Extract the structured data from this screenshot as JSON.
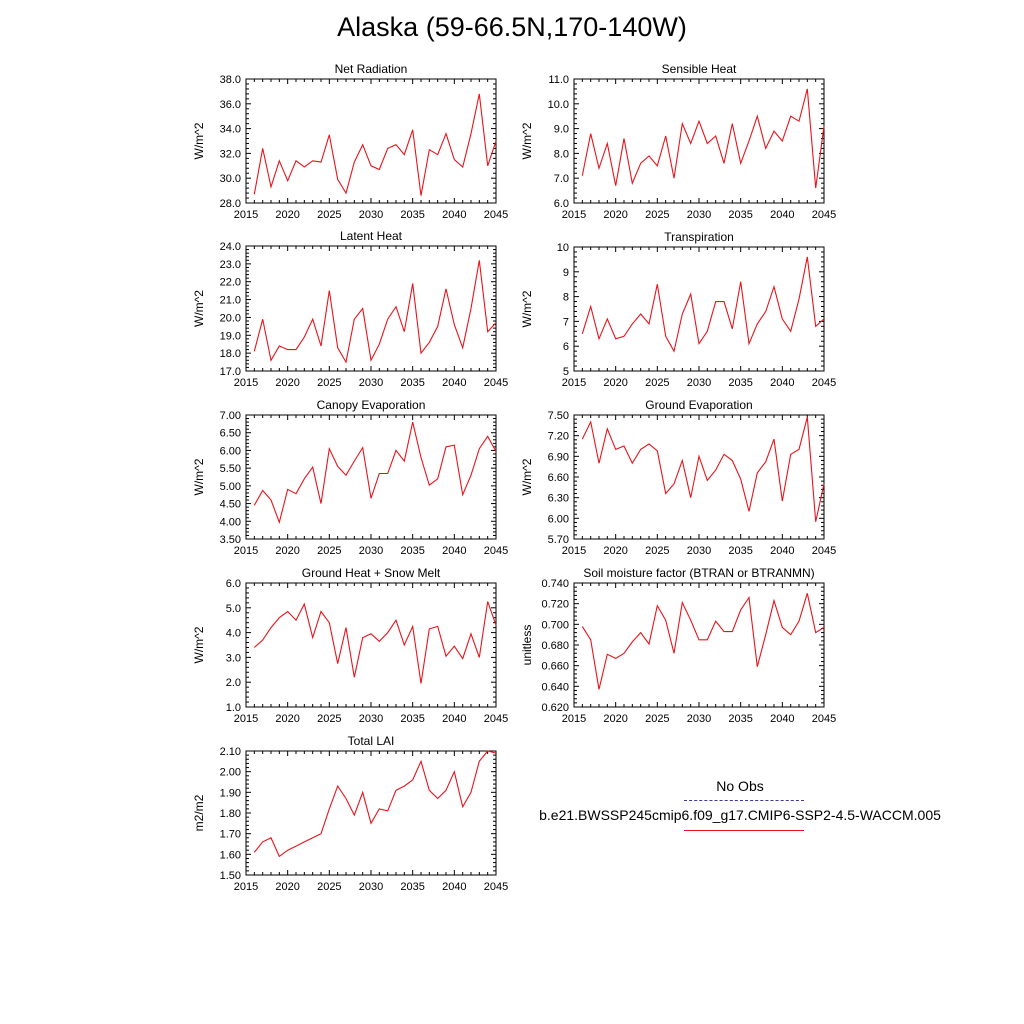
{
  "title": "Alaska (59-66.5N,170-140W)",
  "line_color": "#e8141b",
  "obs_color": "#3a3aa0",
  "legend": {
    "obs_label": "No Obs",
    "model_label": "b.e21.BWSSP245cmip6.f09_g17.CMIP6-SSP2-4.5-WACCM.005"
  },
  "chart_data": [
    {
      "type": "line",
      "title": "Net Radiation",
      "ylabel": "W/m^2",
      "xlim": [
        2015,
        2045
      ],
      "ylim": [
        28.0,
        38.0
      ],
      "xticks": [
        2015,
        2020,
        2025,
        2030,
        2035,
        2040,
        2045
      ],
      "yticks": [
        "28.0",
        "30.0",
        "32.0",
        "34.0",
        "36.0",
        "38.0"
      ],
      "x": [
        2016,
        2017,
        2018,
        2019,
        2020,
        2021,
        2022,
        2023,
        2024,
        2025,
        2026,
        2027,
        2028,
        2029,
        2030,
        2031,
        2032,
        2033,
        2034,
        2035,
        2036,
        2037,
        2038,
        2039,
        2040,
        2041,
        2042,
        2043,
        2044,
        2045
      ],
      "values": [
        28.7,
        32.4,
        29.3,
        31.4,
        29.8,
        31.4,
        30.9,
        31.4,
        31.3,
        33.5,
        29.9,
        28.8,
        31.3,
        32.7,
        31.0,
        30.7,
        32.4,
        32.7,
        31.9,
        33.9,
        28.6,
        32.3,
        31.9,
        33.6,
        31.5,
        30.9,
        33.6,
        36.8,
        31.0,
        33.0
      ]
    },
    {
      "type": "line",
      "title": "Sensible Heat",
      "ylabel": "W/m^2",
      "xlim": [
        2015,
        2045
      ],
      "ylim": [
        6.0,
        11.0
      ],
      "xticks": [
        2015,
        2020,
        2025,
        2030,
        2035,
        2040,
        2045
      ],
      "yticks": [
        "6.0",
        "7.0",
        "8.0",
        "9.0",
        "10.0",
        "11.0"
      ],
      "x": [
        2016,
        2017,
        2018,
        2019,
        2020,
        2021,
        2022,
        2023,
        2024,
        2025,
        2026,
        2027,
        2028,
        2029,
        2030,
        2031,
        2032,
        2033,
        2034,
        2035,
        2036,
        2037,
        2038,
        2039,
        2040,
        2041,
        2042,
        2043,
        2044,
        2045
      ],
      "values": [
        7.1,
        8.8,
        7.4,
        8.4,
        6.7,
        8.6,
        6.8,
        7.6,
        7.9,
        7.5,
        8.7,
        7.0,
        9.2,
        8.4,
        9.3,
        8.4,
        8.7,
        7.6,
        9.2,
        7.6,
        8.5,
        9.5,
        8.2,
        8.9,
        8.5,
        9.5,
        9.3,
        10.6,
        6.6,
        9.1
      ]
    },
    {
      "type": "line",
      "title": "Latent Heat",
      "ylabel": "W/m^2",
      "xlim": [
        2015,
        2045
      ],
      "ylim": [
        17.0,
        24.0
      ],
      "xticks": [
        2015,
        2020,
        2025,
        2030,
        2035,
        2040,
        2045
      ],
      "yticks": [
        "17.0",
        "18.0",
        "19.0",
        "20.0",
        "21.0",
        "22.0",
        "23.0",
        "24.0"
      ],
      "x": [
        2016,
        2017,
        2018,
        2019,
        2020,
        2021,
        2022,
        2023,
        2024,
        2025,
        2026,
        2027,
        2028,
        2029,
        2030,
        2031,
        2032,
        2033,
        2034,
        2035,
        2036,
        2037,
        2038,
        2039,
        2040,
        2041,
        2042,
        2043,
        2044,
        2045
      ],
      "values": [
        18.1,
        19.9,
        17.6,
        18.4,
        18.2,
        18.2,
        18.9,
        19.9,
        18.4,
        21.5,
        18.3,
        17.5,
        19.9,
        20.5,
        17.6,
        18.5,
        19.9,
        20.6,
        19.2,
        21.9,
        18.0,
        18.6,
        19.5,
        21.6,
        19.6,
        18.3,
        20.5,
        23.2,
        19.2,
        19.7
      ]
    },
    {
      "type": "line",
      "title": "Transpiration",
      "ylabel": "W/m^2",
      "xlim": [
        2015,
        2045
      ],
      "ylim": [
        5,
        10
      ],
      "xticks": [
        2015,
        2020,
        2025,
        2030,
        2035,
        2040,
        2045
      ],
      "yticks": [
        "5",
        "6",
        "7",
        "8",
        "9",
        "10"
      ],
      "x": [
        2016,
        2017,
        2018,
        2019,
        2020,
        2021,
        2022,
        2023,
        2024,
        2025,
        2026,
        2027,
        2028,
        2029,
        2030,
        2031,
        2032,
        2033,
        2034,
        2035,
        2036,
        2037,
        2038,
        2039,
        2040,
        2041,
        2042,
        2043,
        2044,
        2045
      ],
      "values": [
        6.5,
        7.6,
        6.3,
        7.1,
        6.3,
        6.4,
        6.9,
        7.3,
        6.9,
        8.5,
        6.4,
        5.8,
        7.3,
        8.1,
        6.1,
        6.6,
        7.8,
        7.8,
        6.7,
        8.6,
        6.1,
        6.9,
        7.4,
        8.4,
        7.1,
        6.6,
        7.9,
        9.6,
        6.8,
        7.1
      ]
    },
    {
      "type": "line",
      "title": "Canopy Evaporation",
      "ylabel": "W/m^2",
      "xlim": [
        2015,
        2045
      ],
      "ylim": [
        3.5,
        7.0
      ],
      "xticks": [
        2015,
        2020,
        2025,
        2030,
        2035,
        2040,
        2045
      ],
      "yticks": [
        "3.50",
        "4.00",
        "4.50",
        "5.00",
        "5.50",
        "6.00",
        "6.50",
        "7.00"
      ],
      "x": [
        2016,
        2017,
        2018,
        2019,
        2020,
        2021,
        2022,
        2023,
        2024,
        2025,
        2026,
        2027,
        2028,
        2029,
        2030,
        2031,
        2032,
        2033,
        2034,
        2035,
        2036,
        2037,
        2038,
        2039,
        2040,
        2041,
        2042,
        2043,
        2044,
        2045
      ],
      "values": [
        4.45,
        4.87,
        4.6,
        3.97,
        4.9,
        4.78,
        5.2,
        5.53,
        4.5,
        6.05,
        5.55,
        5.3,
        5.7,
        6.08,
        4.65,
        5.35,
        5.35,
        6.0,
        5.7,
        6.8,
        5.8,
        5.02,
        5.2,
        6.1,
        6.15,
        4.75,
        5.3,
        6.05,
        6.4,
        5.97
      ]
    },
    {
      "type": "line",
      "title": "Ground Evaporation",
      "ylabel": "W/m^2",
      "xlim": [
        2015,
        2045
      ],
      "ylim": [
        5.7,
        7.5
      ],
      "xticks": [
        2015,
        2020,
        2025,
        2030,
        2035,
        2040,
        2045
      ],
      "yticks": [
        "5.70",
        "6.00",
        "6.30",
        "6.60",
        "6.90",
        "7.20",
        "7.50"
      ],
      "x": [
        2016,
        2017,
        2018,
        2019,
        2020,
        2021,
        2022,
        2023,
        2024,
        2025,
        2026,
        2027,
        2028,
        2029,
        2030,
        2031,
        2032,
        2033,
        2034,
        2035,
        2036,
        2037,
        2038,
        2039,
        2040,
        2041,
        2042,
        2043,
        2044,
        2045
      ],
      "values": [
        7.15,
        7.4,
        6.8,
        7.3,
        7.0,
        7.05,
        6.8,
        7.0,
        7.08,
        6.98,
        6.36,
        6.5,
        6.84,
        6.3,
        6.9,
        6.55,
        6.7,
        6.93,
        6.84,
        6.57,
        6.1,
        6.66,
        6.82,
        7.15,
        6.25,
        6.93,
        7.0,
        7.47,
        5.95,
        6.5
      ]
    },
    {
      "type": "line",
      "title": "Ground Heat + Snow Melt",
      "ylabel": "W/m^2",
      "xlim": [
        2015,
        2045
      ],
      "ylim": [
        1.0,
        6.0
      ],
      "xticks": [
        2015,
        2020,
        2025,
        2030,
        2035,
        2040,
        2045
      ],
      "yticks": [
        "1.0",
        "2.0",
        "3.0",
        "4.0",
        "5.0",
        "6.0"
      ],
      "x": [
        2016,
        2017,
        2018,
        2019,
        2020,
        2021,
        2022,
        2023,
        2024,
        2025,
        2026,
        2027,
        2028,
        2029,
        2030,
        2031,
        2032,
        2033,
        2034,
        2035,
        2036,
        2037,
        2038,
        2039,
        2040,
        2041,
        2042,
        2043,
        2044,
        2045
      ],
      "values": [
        3.4,
        3.7,
        4.2,
        4.6,
        4.85,
        4.5,
        5.15,
        3.8,
        4.85,
        4.4,
        2.75,
        4.2,
        2.2,
        3.8,
        3.95,
        3.65,
        4.0,
        4.5,
        3.5,
        4.25,
        1.95,
        4.15,
        4.25,
        3.05,
        3.45,
        2.95,
        3.95,
        3.0,
        5.25,
        4.3
      ]
    },
    {
      "type": "line",
      "title": "Soil moisture factor (BTRAN or BTRANMN)",
      "ylabel": "unitless",
      "xlim": [
        2015,
        2045
      ],
      "ylim": [
        0.62,
        0.74
      ],
      "xticks": [
        2015,
        2020,
        2025,
        2030,
        2035,
        2040,
        2045
      ],
      "yticks": [
        "0.620",
        "0.640",
        "0.660",
        "0.680",
        "0.700",
        "0.720",
        "0.740"
      ],
      "x": [
        2016,
        2017,
        2018,
        2019,
        2020,
        2021,
        2022,
        2023,
        2024,
        2025,
        2026,
        2027,
        2028,
        2029,
        2030,
        2031,
        2032,
        2033,
        2034,
        2035,
        2036,
        2037,
        2038,
        2039,
        2040,
        2041,
        2042,
        2043,
        2044,
        2045
      ],
      "values": [
        0.698,
        0.685,
        0.637,
        0.671,
        0.667,
        0.672,
        0.683,
        0.692,
        0.681,
        0.718,
        0.704,
        0.672,
        0.721,
        0.704,
        0.685,
        0.685,
        0.703,
        0.693,
        0.693,
        0.714,
        0.726,
        0.659,
        0.69,
        0.723,
        0.697,
        0.69,
        0.703,
        0.73,
        0.692,
        0.697
      ]
    },
    {
      "type": "line",
      "title": "Total LAI",
      "ylabel": "m2/m2",
      "xlim": [
        2015,
        2045
      ],
      "ylim": [
        1.5,
        2.1
      ],
      "xticks": [
        2015,
        2020,
        2025,
        2030,
        2035,
        2040,
        2045
      ],
      "yticks": [
        "1.50",
        "1.60",
        "1.70",
        "1.80",
        "1.90",
        "2.00",
        "2.10"
      ],
      "x": [
        2016,
        2017,
        2018,
        2019,
        2020,
        2021,
        2022,
        2023,
        2024,
        2025,
        2026,
        2027,
        2028,
        2029,
        2030,
        2031,
        2032,
        2033,
        2034,
        2035,
        2036,
        2037,
        2038,
        2039,
        2040,
        2041,
        2042,
        2043,
        2044,
        2045
      ],
      "values": [
        1.61,
        1.66,
        1.68,
        1.59,
        1.62,
        1.64,
        1.66,
        1.68,
        1.7,
        1.82,
        1.93,
        1.87,
        1.79,
        1.9,
        1.75,
        1.82,
        1.81,
        1.91,
        1.93,
        1.96,
        2.05,
        1.91,
        1.87,
        1.91,
        2.0,
        1.83,
        1.9,
        2.05,
        2.1,
        2.09
      ]
    }
  ]
}
